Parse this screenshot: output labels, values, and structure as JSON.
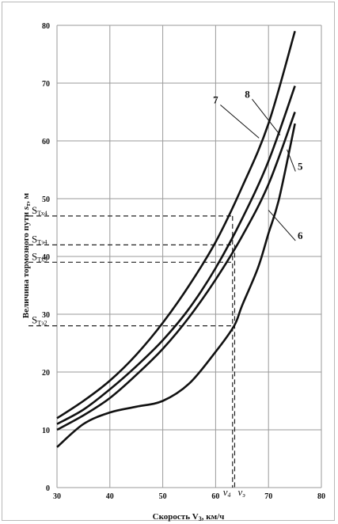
{
  "chart_data": {
    "type": "line",
    "title": "",
    "xlabel": "Скорость V",
    "xlabel_sub": "3",
    "xlabel_unit": ", км/ч",
    "ylabel": "Величина тормозного пути  ",
    "ylabel_sym": "s",
    "ylabel_sym_sub": "т",
    "ylabel_unit": ", м",
    "xlim": [
      30,
      80
    ],
    "ylim": [
      0,
      80
    ],
    "xticks": [
      30,
      40,
      50,
      60,
      70,
      80
    ],
    "yticks": [
      0,
      10,
      20,
      30,
      40,
      50,
      60,
      70,
      80
    ],
    "grid": true,
    "series": [
      {
        "name": "7",
        "x": [
          30,
          35,
          40,
          45,
          50,
          55,
          60,
          65,
          70,
          75
        ],
        "y": [
          12,
          15,
          18.5,
          23,
          28.5,
          35,
          42.5,
          52,
          63,
          79
        ]
      },
      {
        "name": "8",
        "x": [
          30,
          35,
          40,
          45,
          50,
          55,
          60,
          65,
          70,
          75
        ],
        "y": [
          11,
          13.5,
          17,
          21,
          25.5,
          31,
          38,
          46.5,
          56.5,
          69.5
        ]
      },
      {
        "name": "5",
        "x": [
          30,
          35,
          40,
          45,
          50,
          55,
          60,
          65,
          70,
          75
        ],
        "y": [
          10,
          12.5,
          15.5,
          19.5,
          24,
          29.5,
          36,
          43.5,
          52.5,
          65
        ]
      },
      {
        "name": "6",
        "x": [
          30,
          35,
          40,
          45,
          50,
          55,
          60,
          63.5,
          65,
          68,
          70,
          72,
          75
        ],
        "y": [
          7,
          11,
          13,
          14,
          15,
          18,
          23.5,
          28,
          31.5,
          38,
          44,
          50,
          63
        ]
      }
    ],
    "curve_labels": [
      {
        "text": "7",
        "x": 60,
        "y": 66.5,
        "ax": 68.2,
        "ay": 60.5
      },
      {
        "text": "8",
        "x": 66,
        "y": 67.5,
        "ax": 72.2,
        "ay": 61
      },
      {
        "text": "5",
        "x": 76,
        "y": 55,
        "ax": 73.5,
        "ay": 58.5
      },
      {
        "text": "6",
        "x": 76,
        "y": 43,
        "ax": 70,
        "ay": 48
      }
    ],
    "ref_lines": [
      {
        "label": "S",
        "sub": "Тх4",
        "y": 47,
        "x_end": 63.2,
        "label_y": 47
      },
      {
        "label": "S",
        "sub": "Тэ4",
        "y": 42,
        "x_end": 63.6,
        "label_y": 42
      },
      {
        "label": "S",
        "sub": "Тх3",
        "y": 39,
        "x_end": 63.6,
        "label_y": 39
      },
      {
        "label": "S",
        "sub": "Тэ2",
        "y": 28,
        "x_end": 63.6,
        "label_y": 28
      }
    ],
    "vert_lines": [
      {
        "label": "v",
        "sub": "4",
        "x": 63.2,
        "y_top": 47
      },
      {
        "label": "v",
        "sub": "э",
        "x": 63.6,
        "y_top": 42
      }
    ]
  }
}
